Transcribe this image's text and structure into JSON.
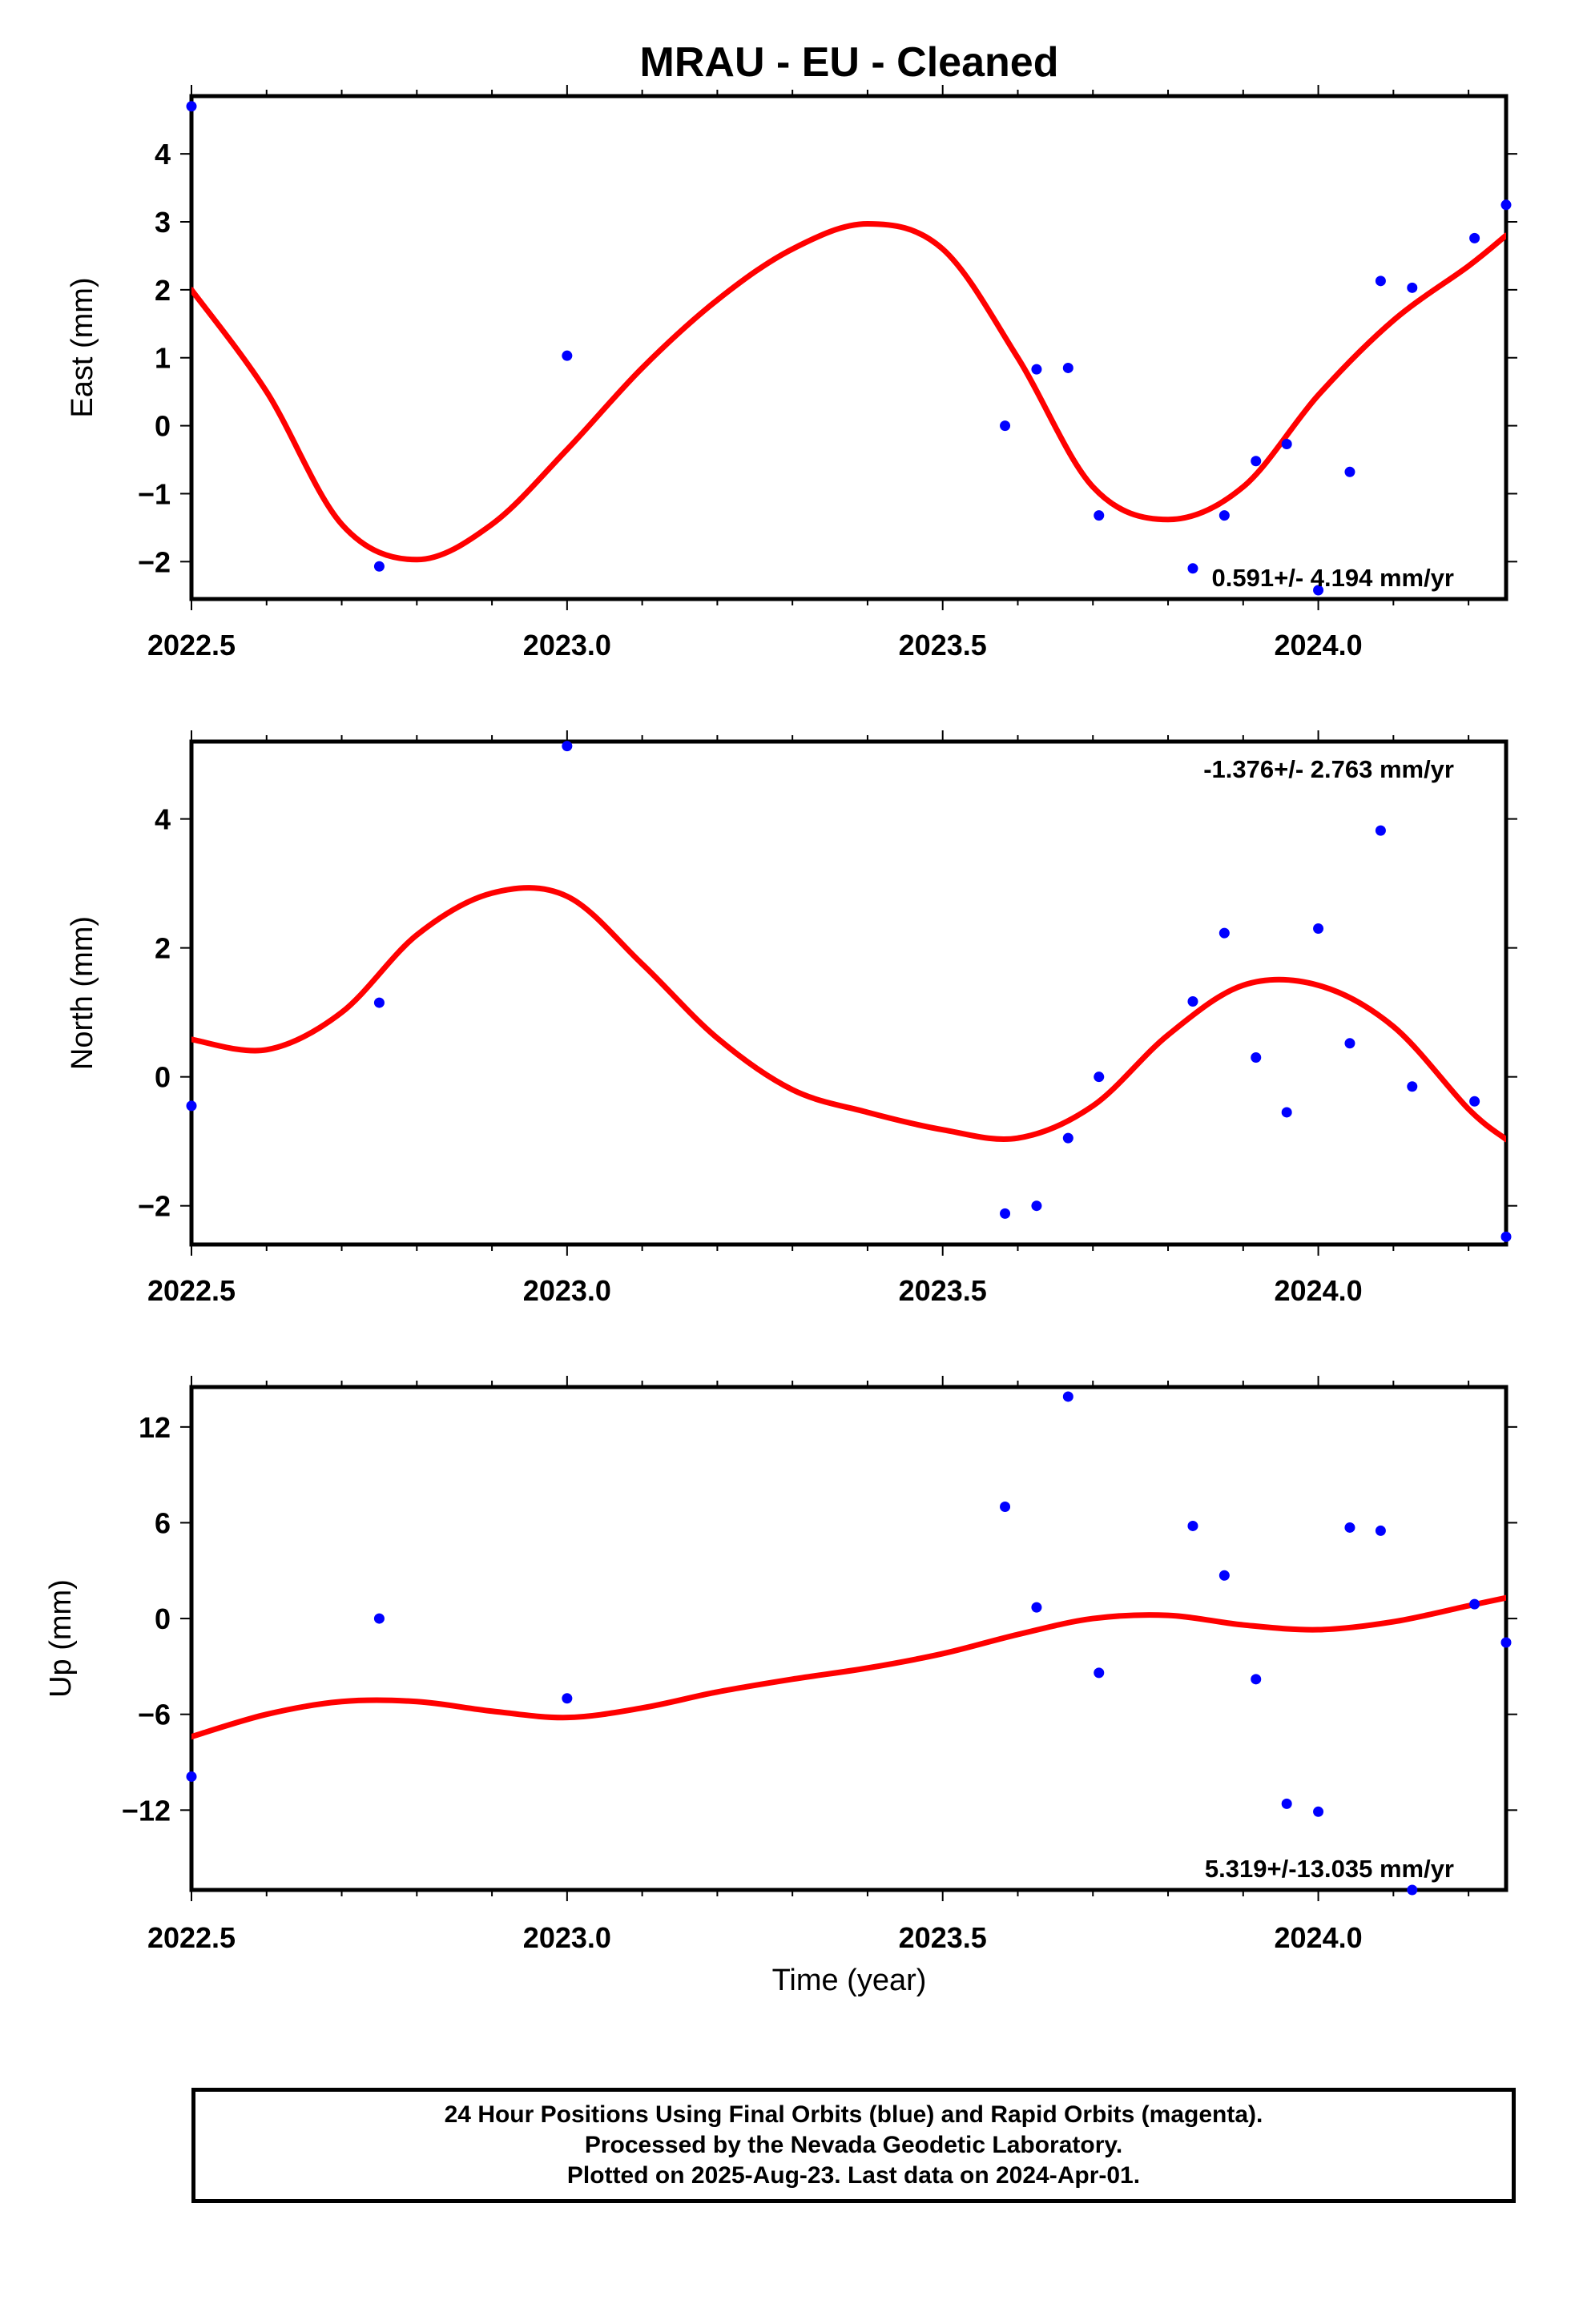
{
  "title": "MRAU  - EU - Cleaned",
  "xlabel": "Time (year)",
  "footer": {
    "line1": "24 Hour Positions Using Final Orbits (blue) and Rapid Orbits (magenta).",
    "line2": "Processed by the Nevada Geodetic Laboratory.",
    "line3": "Plotted on 2025-Aug-23. Last data on 2024-Apr-01."
  },
  "colors": {
    "points": "#0000ff",
    "fit": "#ff0000",
    "axes": "#000000"
  },
  "chart_data": [
    {
      "type": "scatter",
      "ylabel": "East (mm)",
      "rate_label": "0.591+/- 4.194 mm/yr",
      "rate_position": "bottom-right",
      "xlim": [
        2022.5,
        2024.25
      ],
      "ylim": [
        -2.55,
        4.85
      ],
      "xticks": [
        "2022.5",
        "2023.0",
        "2023.5",
        "2024.0"
      ],
      "yticks": [
        "4",
        "3",
        "2",
        "1",
        "0",
        "−1",
        "−2"
      ],
      "grid": false,
      "series": [
        {
          "kind": "points",
          "x": [
            2022.5,
            2022.75,
            2023.0,
            2023.583,
            2023.625,
            2023.667,
            2023.708,
            2023.833,
            2023.875,
            2023.917,
            2023.958,
            2024.0,
            2024.042,
            2024.083,
            2024.125,
            2024.208,
            2024.25
          ],
          "y": [
            4.7,
            -2.07,
            1.03,
            0.0,
            0.83,
            0.85,
            -1.32,
            -2.1,
            -1.32,
            -0.52,
            -0.27,
            -2.42,
            -0.68,
            2.13,
            2.03,
            2.76,
            3.25
          ]
        },
        {
          "kind": "fit",
          "x": [
            2022.5,
            2022.6,
            2022.7,
            2022.8,
            2022.9,
            2023.0,
            2023.1,
            2023.2,
            2023.3,
            2023.4,
            2023.5,
            2023.6,
            2023.7,
            2023.8,
            2023.9,
            2024.0,
            2024.1,
            2024.2,
            2024.25
          ],
          "y": [
            2.0,
            0.5,
            -1.45,
            -1.97,
            -1.45,
            -0.35,
            0.85,
            1.85,
            2.6,
            2.97,
            2.6,
            1.0,
            -0.9,
            -1.38,
            -0.9,
            0.45,
            1.55,
            2.35,
            2.8
          ]
        }
      ]
    },
    {
      "type": "scatter",
      "ylabel": "North (mm)",
      "rate_label": "-1.376+/- 2.763 mm/yr",
      "rate_position": "top-right",
      "xlim": [
        2022.5,
        2024.25
      ],
      "ylim": [
        -2.6,
        5.2
      ],
      "xticks": [
        "2022.5",
        "2023.0",
        "2023.5",
        "2024.0"
      ],
      "yticks": [
        "4",
        "2",
        "0",
        "−2"
      ],
      "grid": false,
      "series": [
        {
          "kind": "points",
          "x": [
            2022.5,
            2022.75,
            2023.0,
            2023.583,
            2023.625,
            2023.667,
            2023.708,
            2023.833,
            2023.875,
            2023.917,
            2023.958,
            2024.0,
            2024.042,
            2024.083,
            2024.125,
            2024.208,
            2024.25
          ],
          "y": [
            -0.45,
            1.15,
            5.13,
            -2.12,
            -2.0,
            -0.95,
            0.0,
            1.17,
            2.23,
            0.3,
            -0.55,
            2.3,
            0.52,
            3.82,
            -0.15,
            -0.38,
            -2.48
          ]
        },
        {
          "kind": "fit",
          "x": [
            2022.5,
            2022.6,
            2022.7,
            2022.8,
            2022.9,
            2023.0,
            2023.1,
            2023.2,
            2023.3,
            2023.4,
            2023.5,
            2023.6,
            2023.7,
            2023.8,
            2023.9,
            2024.0,
            2024.1,
            2024.2,
            2024.25
          ],
          "y": [
            0.58,
            0.42,
            1.0,
            2.2,
            2.85,
            2.8,
            1.75,
            0.6,
            -0.2,
            -0.55,
            -0.82,
            -0.95,
            -0.45,
            0.65,
            1.42,
            1.42,
            0.78,
            -0.5,
            -0.97
          ]
        }
      ]
    },
    {
      "type": "scatter",
      "ylabel": "Up (mm)",
      "rate_label": "5.319+/-13.035 mm/yr",
      "rate_position": "bottom-right",
      "xlim": [
        2022.5,
        2024.25
      ],
      "ylim": [
        -17.0,
        14.5
      ],
      "xticks": [
        "2022.5",
        "2023.0",
        "2023.5",
        "2024.0"
      ],
      "yticks": [
        "12",
        "6",
        "0",
        "−6",
        "−12"
      ],
      "grid": false,
      "series": [
        {
          "kind": "points",
          "x": [
            2022.5,
            2022.75,
            2023.0,
            2023.583,
            2023.625,
            2023.667,
            2023.708,
            2023.833,
            2023.875,
            2023.917,
            2023.958,
            2024.0,
            2024.042,
            2024.083,
            2024.125,
            2024.208,
            2024.25
          ],
          "y": [
            -9.9,
            0.0,
            -5.0,
            7.0,
            0.7,
            13.9,
            -3.4,
            5.8,
            2.7,
            -3.8,
            -11.6,
            -12.1,
            5.7,
            5.5,
            -17.0,
            0.9,
            -1.5
          ]
        },
        {
          "kind": "fit",
          "x": [
            2022.5,
            2022.6,
            2022.7,
            2022.8,
            2022.9,
            2023.0,
            2023.1,
            2023.2,
            2023.3,
            2023.4,
            2023.5,
            2023.6,
            2023.7,
            2023.8,
            2023.9,
            2024.0,
            2024.1,
            2024.2,
            2024.25
          ],
          "y": [
            -7.4,
            -6.0,
            -5.2,
            -5.2,
            -5.8,
            -6.2,
            -5.6,
            -4.6,
            -3.8,
            -3.1,
            -2.2,
            -1.0,
            0.0,
            0.2,
            -0.4,
            -0.7,
            -0.2,
            0.8,
            1.3
          ]
        }
      ]
    }
  ]
}
